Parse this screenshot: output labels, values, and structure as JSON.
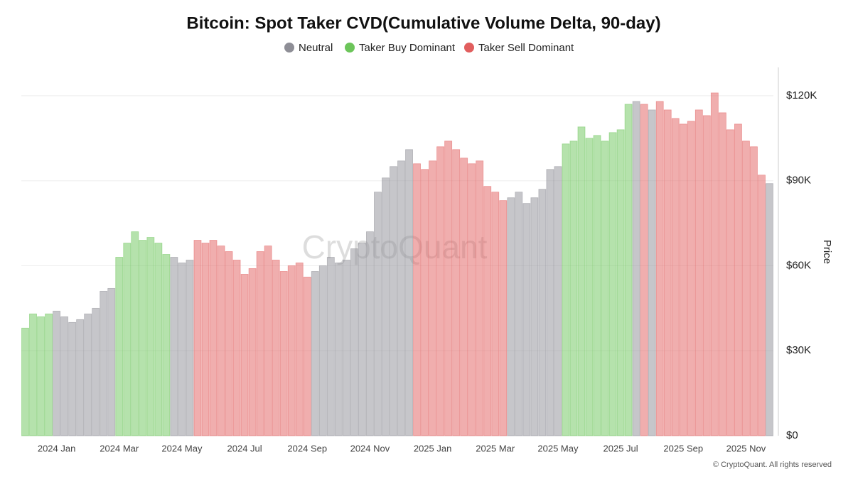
{
  "chart_data": {
    "type": "bar",
    "title": "Bitcoin: Spot Taker CVD(Cumulative Volume Delta, 90-day)",
    "y_label": "Price",
    "watermark": "CryptoQuant",
    "footer": "© CryptoQuant. All rights reserved",
    "categories": [
      null,
      null,
      null,
      null,
      "2024 Jan",
      null,
      null,
      null,
      null,
      null,
      null,
      null,
      "2024 Mar",
      null,
      null,
      null,
      null,
      null,
      null,
      null,
      "2024 May",
      null,
      null,
      null,
      null,
      null,
      null,
      null,
      "2024 Jul",
      null,
      null,
      null,
      null,
      null,
      null,
      null,
      "2024 Sep",
      null,
      null,
      null,
      null,
      null,
      null,
      null,
      "2024 Nov",
      null,
      null,
      null,
      null,
      null,
      null,
      null,
      "2025 Jan",
      null,
      null,
      null,
      null,
      null,
      null,
      null,
      "2025 Mar",
      null,
      null,
      null,
      null,
      null,
      null,
      null,
      "2025 May",
      null,
      null,
      null,
      null,
      null,
      null,
      null,
      "2025 Jul",
      null,
      null,
      null,
      null,
      null,
      null,
      null,
      "2025 Sep",
      null,
      null,
      null,
      null,
      null,
      null,
      null,
      "2025 Nov",
      null,
      null,
      null
    ],
    "series": [
      {
        "name": "Neutral",
        "color": "#8e8e96",
        "values": [
          null,
          null,
          null,
          null,
          44000,
          42000,
          40000,
          41000,
          43000,
          45000,
          51000,
          52000,
          null,
          null,
          null,
          null,
          null,
          null,
          null,
          63000,
          61000,
          62000,
          null,
          null,
          null,
          null,
          null,
          null,
          null,
          null,
          null,
          null,
          null,
          null,
          null,
          null,
          null,
          58000,
          60000,
          63000,
          61000,
          62000,
          66000,
          68000,
          72000,
          86000,
          91000,
          95000,
          97000,
          101000,
          null,
          null,
          null,
          null,
          null,
          null,
          null,
          null,
          null,
          null,
          null,
          null,
          84000,
          86000,
          82000,
          84000,
          87000,
          94000,
          95000,
          null,
          null,
          null,
          null,
          null,
          null,
          null,
          null,
          null,
          118000,
          null,
          115000,
          null,
          null,
          null,
          null,
          null,
          null,
          null,
          null,
          null,
          null,
          null,
          null,
          null,
          null,
          89000
        ]
      },
      {
        "name": "Taker Buy Dominant",
        "color": "#6cc55a",
        "values": [
          38000,
          43000,
          42000,
          43000,
          null,
          null,
          null,
          null,
          null,
          null,
          null,
          null,
          63000,
          68000,
          72000,
          69000,
          70000,
          68000,
          64000,
          null,
          null,
          null,
          null,
          null,
          null,
          null,
          null,
          null,
          null,
          null,
          null,
          null,
          null,
          null,
          null,
          null,
          null,
          null,
          null,
          null,
          null,
          null,
          null,
          null,
          null,
          null,
          null,
          null,
          null,
          null,
          null,
          null,
          null,
          null,
          null,
          null,
          null,
          null,
          null,
          null,
          null,
          null,
          null,
          null,
          null,
          null,
          null,
          null,
          null,
          103000,
          104000,
          109000,
          105000,
          106000,
          104000,
          107000,
          108000,
          117000,
          null,
          null,
          null,
          null,
          null,
          null,
          null,
          null,
          null,
          null,
          null,
          null,
          null,
          null,
          null,
          null,
          null,
          null
        ]
      },
      {
        "name": "Taker Sell Dominant",
        "color": "#e15e5e",
        "values": [
          null,
          null,
          null,
          null,
          null,
          null,
          null,
          null,
          null,
          null,
          null,
          null,
          null,
          null,
          null,
          null,
          null,
          null,
          null,
          null,
          null,
          null,
          69000,
          68000,
          69000,
          67000,
          65000,
          62000,
          57000,
          59000,
          65000,
          67000,
          62000,
          58000,
          60000,
          61000,
          56000,
          null,
          null,
          null,
          null,
          null,
          null,
          null,
          null,
          null,
          null,
          null,
          null,
          null,
          96000,
          94000,
          97000,
          102000,
          104000,
          101000,
          98000,
          96000,
          97000,
          88000,
          86000,
          83000,
          null,
          null,
          null,
          null,
          null,
          null,
          null,
          null,
          null,
          null,
          null,
          null,
          null,
          null,
          null,
          null,
          null,
          117000,
          null,
          118000,
          115000,
          112000,
          110000,
          111000,
          115000,
          113000,
          121000,
          114000,
          108000,
          110000,
          104000,
          102000,
          92000,
          null
        ]
      }
    ],
    "ylim": [
      0,
      130000
    ],
    "yticks": [
      {
        "value": 0,
        "label": "$0"
      },
      {
        "value": 30000,
        "label": "$30K"
      },
      {
        "value": 60000,
        "label": "$60K"
      },
      {
        "value": 90000,
        "label": "$90K"
      },
      {
        "value": 120000,
        "label": "$120K"
      }
    ],
    "grid": true
  }
}
